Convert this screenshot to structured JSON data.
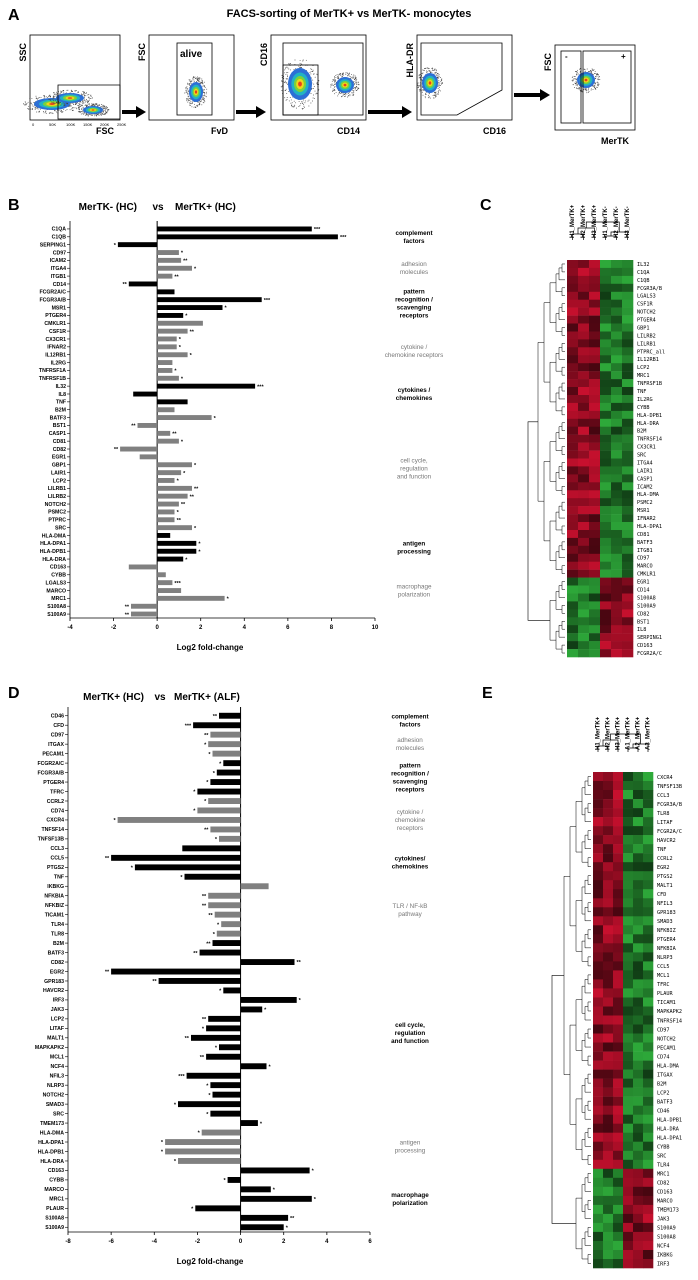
{
  "panels": [
    "A",
    "B",
    "C",
    "D",
    "E"
  ],
  "facs": {
    "title": "FACS-sorting of MerTK+ vs MerTK- monocytes",
    "plots": [
      {
        "ylabel": "SSC",
        "xlabel": "FSC",
        "gate_label": "",
        "ticks": [
          "0",
          "50K",
          "100K",
          "150K",
          "200K",
          "250K"
        ]
      },
      {
        "ylabel": "FSC",
        "xlabel": "FvD",
        "gate_label": "alive",
        "ticks": []
      },
      {
        "ylabel": "CD16",
        "xlabel": "CD14",
        "gate_label": "",
        "ticks": []
      },
      {
        "ylabel": "HLA-DR",
        "xlabel": "CD16",
        "gate_label": "",
        "ticks": []
      },
      {
        "ylabel": "FSC",
        "xlabel": "MerTK",
        "gate_label": "",
        "ticks": []
      }
    ],
    "gate_minus": "-",
    "gate_plus": "+"
  },
  "chart_data": [
    {
      "type": "bar",
      "panel": "B",
      "title_left": "MerTK- (HC)",
      "title_vs": "vs",
      "title_right": "MerTK+ (HC)",
      "xlabel": "Log2 fold-change",
      "xlim": [
        -4,
        10
      ],
      "xticks": [
        "-4",
        "-2",
        "0",
        "2",
        "4",
        "6",
        "8",
        "10"
      ],
      "categories": [
        "C1QA",
        "C1QB",
        "SERPING1",
        "CD97",
        "ICAM2",
        "ITGA4",
        "ITGB1",
        "CD14",
        "FCGR2A/C",
        "FCGR3A/B",
        "MSR1",
        "PTGER4",
        "CMKLR1",
        "CSF1R",
        "CX3CR1",
        "IFNAR2",
        "IL12RB1",
        "IL2RG",
        "TNFRSF1A",
        "TNFRSF1B",
        "IL32",
        "IL8",
        "TNF",
        "B2M",
        "BATF3",
        "BST1",
        "CASP1",
        "CD81",
        "CD82",
        "EGR1",
        "GBP1",
        "LAIR1",
        "LCP2",
        "LILRB1",
        "LILRB2",
        "NOTCH2",
        "PSMC2",
        "PTPRC",
        "SRC",
        "HLA-DMA",
        "HLA-DPA1",
        "HLA-DPB1",
        "HLA-DRA",
        "CD163",
        "CYBB",
        "LGALS3",
        "MARCO",
        "MRC1",
        "S100A8",
        "S100A9"
      ],
      "values": [
        7.1,
        8.3,
        -1.8,
        1.0,
        1.1,
        1.6,
        0.7,
        -1.3,
        0.8,
        4.8,
        3.0,
        1.2,
        2.1,
        1.4,
        0.9,
        0.9,
        1.4,
        0.7,
        0.7,
        1.0,
        4.5,
        -1.1,
        1.4,
        0.8,
        2.5,
        -0.9,
        0.6,
        1.0,
        -1.7,
        -0.8,
        1.6,
        1.1,
        0.8,
        1.6,
        1.4,
        1.0,
        0.8,
        0.8,
        1.6,
        0.6,
        1.8,
        1.8,
        1.2,
        -1.3,
        0.4,
        0.7,
        1.1,
        3.1,
        -1.2,
        -1.2
      ],
      "significance": [
        "***",
        "***",
        "*",
        "*",
        "**",
        "*",
        "**",
        "**",
        "",
        "***",
        "*",
        "*",
        "",
        "**",
        "*",
        "*",
        "*",
        "",
        "*",
        "*",
        "***",
        "",
        "",
        "",
        "*",
        "**",
        "**",
        "*",
        "**",
        "",
        "*",
        "*",
        "*",
        "**",
        "**",
        "**",
        "*",
        "**",
        "*",
        "",
        "*",
        "*",
        "*",
        "",
        "",
        "***",
        "",
        "*",
        "**",
        "**"
      ],
      "highlight": [
        true,
        true,
        true,
        false,
        false,
        false,
        false,
        true,
        true,
        true,
        true,
        true,
        false,
        false,
        false,
        false,
        false,
        false,
        false,
        false,
        true,
        true,
        true,
        false,
        false,
        false,
        false,
        false,
        false,
        false,
        false,
        false,
        false,
        false,
        false,
        false,
        false,
        false,
        false,
        true,
        true,
        true,
        true,
        false,
        false,
        false,
        false,
        false,
        false,
        false
      ],
      "groups": [
        {
          "label": [
            "complement",
            "factors"
          ],
          "style": "black",
          "first": 0,
          "last": 2
        },
        {
          "label": [
            "adhesion",
            "molecules"
          ],
          "style": "gray",
          "first": 3,
          "last": 7
        },
        {
          "label": [
            "pattern",
            "recognition /",
            "scavenging",
            "receptors"
          ],
          "style": "black",
          "first": 8,
          "last": 11
        },
        {
          "label": [
            "cytokine /",
            "chemokine receptors"
          ],
          "style": "gray",
          "first": 12,
          "last": 19
        },
        {
          "label": [
            "cytokines /",
            "chemokines"
          ],
          "style": "black",
          "first": 20,
          "last": 22
        },
        {
          "label": [
            "cell cycle,",
            "regulation",
            "and function"
          ],
          "style": "gray",
          "first": 23,
          "last": 38
        },
        {
          "label": [
            "antigen",
            "processing"
          ],
          "style": "black",
          "first": 39,
          "last": 42
        },
        {
          "label": [
            "macrophage",
            "polarization"
          ],
          "style": "gray",
          "first": 43,
          "last": 49
        }
      ],
      "colors": {
        "highlight": "#000000",
        "normal": "#808080"
      }
    },
    {
      "type": "bar",
      "panel": "D",
      "title_left": "MerTK+ (HC)",
      "title_vs": "vs",
      "title_right": "MerTK+ (ALF)",
      "xlabel": "Log2 fold-change",
      "xlim": [
        -8,
        6
      ],
      "xticks": [
        "-8",
        "-6",
        "-4",
        "-2",
        "0",
        "2",
        "4",
        "6"
      ],
      "categories": [
        "CD46",
        "CFD",
        "CD97",
        "ITGAX",
        "PECAM1",
        "FCGR2A/C",
        "FCGR3A/B",
        "PTGER4",
        "TFRC",
        "CCRL2",
        "CD74",
        "CXCR4",
        "TNFSF14",
        "TNFSF13B",
        "CCL3",
        "CCL5",
        "PTGS2",
        "TNF",
        "IKBKG",
        "NFKBIA",
        "NFKBIZ",
        "TICAM1",
        "TLR4",
        "TLR8",
        "B2M",
        "BATF3",
        "CD82",
        "EGR2",
        "GPR183",
        "HAVCR2",
        "IRF3",
        "JAK3",
        "LCP2",
        "LITAF",
        "MALT1",
        "MAPKAPK2",
        "MCL1",
        "NCF4",
        "NFIL3",
        "NLRP3",
        "NOTCH2",
        "SMAD3",
        "SRC",
        "TMEM173",
        "HLA-DMA",
        "HLA-DPA1",
        "HLA-DPB1",
        "HLA-DRA",
        "CD163",
        "CYBB",
        "MARCO",
        "MRC1",
        "PLAUR",
        "S100A8",
        "S100A9"
      ],
      "values": [
        -1.0,
        -2.2,
        -1.4,
        -1.5,
        -1.3,
        -0.8,
        -1.1,
        -1.4,
        -2.0,
        -1.5,
        -2.0,
        -5.7,
        -1.4,
        -1.0,
        -2.7,
        -6.0,
        -4.9,
        -2.6,
        1.3,
        -1.5,
        -1.5,
        -1.2,
        -0.9,
        -1.1,
        -1.3,
        -1.9,
        2.5,
        -6.0,
        -3.8,
        -0.8,
        2.6,
        1.0,
        -1.5,
        -1.6,
        -2.3,
        -1.0,
        -1.6,
        1.2,
        -2.5,
        -1.4,
        -1.3,
        -2.9,
        -1.4,
        0.8,
        -1.8,
        -3.5,
        -3.5,
        -2.9,
        3.2,
        -0.6,
        1.4,
        3.3,
        -2.1,
        2.2,
        2.0
      ],
      "significance": [
        "**",
        "***",
        "**",
        "*",
        "*",
        "*",
        "*",
        "*",
        "*",
        "*",
        "*",
        "*",
        "**",
        "*",
        "",
        "**",
        "*",
        "*",
        "",
        "**",
        "**",
        "**",
        "*",
        "*",
        "**",
        "**",
        "**",
        "**",
        "**",
        "*",
        "*",
        "*",
        "**",
        "*",
        "**",
        "*",
        "**",
        "*",
        "***",
        "*",
        "*",
        "*",
        "*",
        "*",
        "*",
        "*",
        "*",
        "*",
        "*",
        "*",
        "*",
        "*",
        "*",
        "**",
        "*"
      ],
      "highlight": [
        true,
        true,
        false,
        false,
        false,
        true,
        true,
        true,
        true,
        false,
        false,
        false,
        false,
        false,
        true,
        true,
        true,
        true,
        false,
        false,
        false,
        false,
        false,
        false,
        true,
        true,
        true,
        true,
        true,
        true,
        true,
        true,
        true,
        true,
        true,
        true,
        true,
        true,
        true,
        true,
        true,
        true,
        true,
        true,
        false,
        false,
        false,
        false,
        true,
        true,
        true,
        true,
        true,
        true,
        true
      ],
      "groups": [
        {
          "label": [
            "complement",
            "factors"
          ],
          "style": "black",
          "first": 0,
          "last": 1
        },
        {
          "label": [
            "adhesion",
            "molecules"
          ],
          "style": "gray",
          "first": 2,
          "last": 4
        },
        {
          "label": [
            "pattern",
            "recognition /",
            "scavenging",
            "receptors"
          ],
          "style": "black",
          "first": 5,
          "last": 8
        },
        {
          "label": [
            "cytokine /",
            "chemokine",
            "receptors"
          ],
          "style": "gray",
          "first": 9,
          "last": 13
        },
        {
          "label": [
            "cytokines/",
            "chemokines"
          ],
          "style": "black",
          "first": 14,
          "last": 17
        },
        {
          "label": [
            "TLR / NF-kB",
            "pathway"
          ],
          "style": "gray",
          "first": 18,
          "last": 23
        },
        {
          "label": [
            "cell cycle,",
            "regulation",
            "and function"
          ],
          "style": "black",
          "first": 24,
          "last": 43
        },
        {
          "label": [
            "antigen",
            "processing"
          ],
          "style": "gray",
          "first": 44,
          "last": 47
        },
        {
          "label": [
            "macrophage",
            "polarization"
          ],
          "style": "black",
          "first": 48,
          "last": 54
        }
      ],
      "colors": {
        "highlight": "#000000",
        "normal": "#808080"
      }
    },
    {
      "type": "heatmap",
      "panel": "C",
      "columns": [
        "H1_MerTK+",
        "H2_MerTK+",
        "H3_MerTK+",
        "H1_MerTK-",
        "H2_MerTK-",
        "H3_MerTK-"
      ],
      "rows": [
        "IL32",
        "C1QA",
        "C1QB",
        "FCGR3A/B",
        "LGALS3",
        "CSF1R",
        "NOTCH2",
        "PTGER4",
        "GBP1",
        "LILRB2",
        "LILRB1",
        "PTPRC_all",
        "IL12RB1",
        "LCP2",
        "MRC1",
        "TNFRSF1B",
        "TNF",
        "IL2RG",
        "CYBB",
        "HLA-DPB1",
        "HLA-DRA",
        "B2M",
        "TNFRSF14",
        "CX3CR1",
        "SRC",
        "ITGA4",
        "LAIR1",
        "CASP1",
        "ICAM2",
        "HLA-DMA",
        "PSMC2",
        "MSR1",
        "IFNAR2",
        "HLA-DPA1",
        "CD81",
        "BATF3",
        "ITGB1",
        "CD97",
        "MARCO",
        "CMKLR1",
        "EGR1",
        "CD14",
        "S100A8",
        "S100A9",
        "CD82",
        "BST1",
        "IL8",
        "SERPING1",
        "CD163",
        "FCGR2A/C"
      ],
      "split_row": 40,
      "split_col": 3,
      "colors": {
        "high": "#c8102e",
        "low": "#2eaa3a",
        "mid": "#000000"
      }
    },
    {
      "type": "heatmap",
      "panel": "E",
      "columns": [
        "H1_MerTK+",
        "H2_MerTK+",
        "H3_MerTK+",
        "A1_MerTK+",
        "A2_MerTK+",
        "A3_MerTK+"
      ],
      "rows": [
        "CXCR4",
        "TNFSF13B",
        "CCL3",
        "FCGR3A/B",
        "TLR8",
        "LITAF",
        "FCGR2A/C",
        "HAVCR2",
        "TNF",
        "CCRL2",
        "EGR2",
        "PTGS2",
        "MALT1",
        "CFD",
        "NFIL3",
        "GPR183",
        "SMAD3",
        "NFKBIZ",
        "PTGER4",
        "NFKBIA",
        "NLRP3",
        "CCL5",
        "MCL1",
        "TFRC",
        "PLAUR",
        "TICAM1",
        "MAPKAPK2",
        "TNFRSF14",
        "CD97",
        "NOTCH2",
        "PECAM1",
        "CD74",
        "HLA-DMA",
        "ITGAX",
        "B2M",
        "LCP2",
        "BATF3",
        "CD46",
        "HLA-DPB1",
        "HLA-DRA",
        "HLA-DPA1",
        "CYBB",
        "SRC",
        "TLR4",
        "MRC1",
        "CD82",
        "CD163",
        "MARCO",
        "TMEM173",
        "JAK3",
        "S100A9",
        "S100A8",
        "NCF4",
        "IKBKG",
        "IRF3"
      ],
      "split_row": 44,
      "split_col": 3,
      "colors": {
        "high": "#c8102e",
        "low": "#2eaa3a",
        "mid": "#000000"
      }
    }
  ]
}
